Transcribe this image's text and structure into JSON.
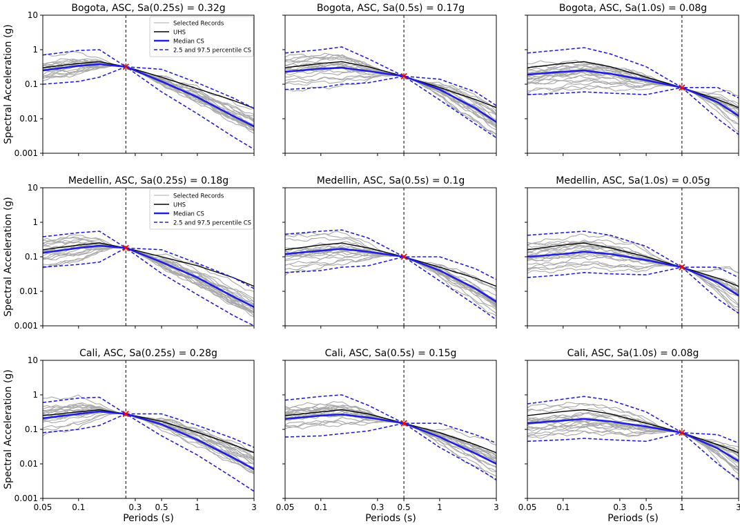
{
  "figure": {
    "ylabel": "Spectral Acceleration (g)",
    "xlabel": "Periods (s)",
    "x_ticks": [
      0.05,
      0.1,
      0.3,
      0.5,
      1,
      3
    ],
    "x_tick_labels": [
      "0.05",
      "0.1",
      "0.3",
      "0.5",
      "1",
      "3"
    ],
    "y_ticks": [
      0.001,
      0.01,
      0.1,
      1,
      10
    ],
    "y_tick_labels": [
      "0.001",
      "0.01",
      "0.1",
      "1",
      "10"
    ],
    "xlim": [
      0.05,
      3
    ],
    "ylim": [
      0.001,
      10
    ],
    "colors": {
      "records": "#a9a9a9",
      "uhs": "#000000",
      "median": "#1f1fdc",
      "percentile": "#1f1fdc",
      "target": "#ff0000",
      "conditioning_line": "#000000"
    },
    "legend": {
      "placement": "top-right",
      "entries": [
        "Selected Records",
        "UHS",
        "Median CS",
        "2.5 and 97.5 percentile CS"
      ]
    }
  },
  "chart_data": [
    {
      "type": "line",
      "title": "Bogota, ASC, Sa(0.25s) = 0.32g",
      "t_star": 0.25,
      "sa": 0.32,
      "series": [
        {
          "name": "UHS",
          "x": [
            0.05,
            0.1,
            0.15,
            0.25,
            0.5,
            1,
            2,
            3
          ],
          "y": [
            0.3,
            0.4,
            0.45,
            0.32,
            0.16,
            0.074,
            0.034,
            0.02
          ]
        },
        {
          "name": "Median CS",
          "x": [
            0.05,
            0.1,
            0.15,
            0.25,
            0.5,
            1,
            2,
            3
          ],
          "y": [
            0.25,
            0.34,
            0.38,
            0.32,
            0.12,
            0.042,
            0.012,
            0.006
          ]
        },
        {
          "name": "2.5 percentile CS",
          "x": [
            0.05,
            0.1,
            0.15,
            0.25,
            0.5,
            1,
            2,
            3
          ],
          "y": [
            0.1,
            0.12,
            0.16,
            0.32,
            0.06,
            0.014,
            0.003,
            0.0013
          ]
        },
        {
          "name": "97.5 percentile CS",
          "x": [
            0.05,
            0.1,
            0.15,
            0.25,
            0.5,
            1,
            2,
            3
          ],
          "y": [
            0.7,
            0.95,
            1,
            0.32,
            0.27,
            0.11,
            0.04,
            0.02
          ]
        }
      ]
    },
    {
      "type": "line",
      "title": "Bogota, ASC, Sa(0.5s) = 0.17g",
      "t_star": 0.5,
      "sa": 0.17,
      "series": [
        {
          "name": "UHS",
          "x": [
            0.05,
            0.1,
            0.15,
            0.25,
            0.5,
            1,
            2,
            3
          ],
          "y": [
            0.3,
            0.4,
            0.45,
            0.32,
            0.17,
            0.08,
            0.036,
            0.021
          ]
        },
        {
          "name": "Median CS",
          "x": [
            0.05,
            0.1,
            0.15,
            0.25,
            0.5,
            1,
            2,
            3
          ],
          "y": [
            0.23,
            0.28,
            0.3,
            0.24,
            0.17,
            0.07,
            0.02,
            0.008
          ]
        },
        {
          "name": "2.5 percentile CS",
          "x": [
            0.05,
            0.1,
            0.15,
            0.25,
            0.5,
            1,
            2,
            3
          ],
          "y": [
            0.07,
            0.08,
            0.1,
            0.11,
            0.17,
            0.035,
            0.007,
            0.0028
          ]
        },
        {
          "name": "97.5 percentile CS",
          "x": [
            0.05,
            0.1,
            0.15,
            0.25,
            0.5,
            1,
            2,
            3
          ],
          "y": [
            0.8,
            1,
            1.2,
            0.55,
            0.17,
            0.14,
            0.06,
            0.024
          ]
        }
      ]
    },
    {
      "type": "line",
      "title": "Bogota, ASC, Sa(1.0s) = 0.08g",
      "t_star": 1.0,
      "sa": 0.08,
      "series": [
        {
          "name": "UHS",
          "x": [
            0.05,
            0.1,
            0.15,
            0.25,
            0.5,
            1,
            2,
            3
          ],
          "y": [
            0.3,
            0.4,
            0.45,
            0.32,
            0.16,
            0.08,
            0.036,
            0.021
          ]
        },
        {
          "name": "Median CS",
          "x": [
            0.05,
            0.1,
            0.15,
            0.25,
            0.5,
            1,
            2,
            3
          ],
          "y": [
            0.19,
            0.23,
            0.25,
            0.2,
            0.13,
            0.08,
            0.03,
            0.012
          ]
        },
        {
          "name": "2.5 percentile CS",
          "x": [
            0.05,
            0.1,
            0.15,
            0.25,
            0.5,
            1,
            2,
            3
          ],
          "y": [
            0.05,
            0.055,
            0.06,
            0.055,
            0.05,
            0.08,
            0.01,
            0.0035
          ]
        },
        {
          "name": "97.5 percentile CS",
          "x": [
            0.05,
            0.1,
            0.15,
            0.25,
            0.5,
            1,
            2,
            3
          ],
          "y": [
            0.8,
            1,
            1.15,
            0.75,
            0.32,
            0.08,
            0.08,
            0.04
          ]
        }
      ]
    },
    {
      "type": "line",
      "title": "Medellin, ASC, Sa(0.25s) = 0.18g",
      "t_star": 0.25,
      "sa": 0.18,
      "series": [
        {
          "name": "UHS",
          "x": [
            0.05,
            0.1,
            0.15,
            0.25,
            0.5,
            1,
            2,
            3
          ],
          "y": [
            0.16,
            0.22,
            0.25,
            0.18,
            0.1,
            0.055,
            0.025,
            0.014
          ]
        },
        {
          "name": "Median CS",
          "x": [
            0.05,
            0.1,
            0.15,
            0.25,
            0.5,
            1,
            2,
            3
          ],
          "y": [
            0.13,
            0.18,
            0.21,
            0.18,
            0.07,
            0.025,
            0.007,
            0.0035
          ]
        },
        {
          "name": "2.5 percentile CS",
          "x": [
            0.05,
            0.1,
            0.15,
            0.25,
            0.5,
            1,
            2,
            3
          ],
          "y": [
            0.05,
            0.06,
            0.07,
            0.18,
            0.033,
            0.008,
            0.002,
            0.001
          ]
        },
        {
          "name": "97.5 percentile CS",
          "x": [
            0.05,
            0.1,
            0.15,
            0.25,
            0.5,
            1,
            2,
            3
          ],
          "y": [
            0.38,
            0.5,
            0.55,
            0.18,
            0.16,
            0.065,
            0.025,
            0.012
          ]
        }
      ]
    },
    {
      "type": "line",
      "title": "Medellin, ASC, Sa(0.5s) = 0.1g",
      "t_star": 0.5,
      "sa": 0.1,
      "series": [
        {
          "name": "UHS",
          "x": [
            0.05,
            0.1,
            0.15,
            0.25,
            0.5,
            1,
            2,
            3
          ],
          "y": [
            0.16,
            0.22,
            0.25,
            0.18,
            0.1,
            0.05,
            0.024,
            0.014
          ]
        },
        {
          "name": "Median CS",
          "x": [
            0.05,
            0.1,
            0.15,
            0.25,
            0.5,
            1,
            2,
            3
          ],
          "y": [
            0.12,
            0.15,
            0.17,
            0.14,
            0.1,
            0.04,
            0.012,
            0.005
          ]
        },
        {
          "name": "2.5 percentile CS",
          "x": [
            0.05,
            0.1,
            0.15,
            0.25,
            0.5,
            1,
            2,
            3
          ],
          "y": [
            0.035,
            0.04,
            0.05,
            0.055,
            0.1,
            0.02,
            0.004,
            0.0015
          ]
        },
        {
          "name": "97.5 percentile CS",
          "x": [
            0.05,
            0.1,
            0.15,
            0.25,
            0.5,
            1,
            2,
            3
          ],
          "y": [
            0.45,
            0.55,
            0.6,
            0.35,
            0.1,
            0.1,
            0.045,
            0.022
          ]
        }
      ]
    },
    {
      "type": "line",
      "title": "Medellin, ASC, Sa(1.0s) = 0.05g",
      "t_star": 1.0,
      "sa": 0.05,
      "series": [
        {
          "name": "UHS",
          "x": [
            0.05,
            0.1,
            0.15,
            0.25,
            0.5,
            1,
            2,
            3
          ],
          "y": [
            0.16,
            0.22,
            0.25,
            0.18,
            0.1,
            0.05,
            0.024,
            0.014
          ]
        },
        {
          "name": "Median CS",
          "x": [
            0.05,
            0.1,
            0.15,
            0.25,
            0.5,
            1,
            2,
            3
          ],
          "y": [
            0.1,
            0.12,
            0.14,
            0.12,
            0.08,
            0.05,
            0.018,
            0.0075
          ]
        },
        {
          "name": "2.5 percentile CS",
          "x": [
            0.05,
            0.1,
            0.15,
            0.25,
            0.5,
            1,
            2,
            3
          ],
          "y": [
            0.025,
            0.03,
            0.035,
            0.032,
            0.03,
            0.05,
            0.006,
            0.0023
          ]
        },
        {
          "name": "97.5 percentile CS",
          "x": [
            0.05,
            0.1,
            0.15,
            0.25,
            0.5,
            1,
            2,
            3
          ],
          "y": [
            0.42,
            0.5,
            0.55,
            0.42,
            0.2,
            0.05,
            0.05,
            0.025
          ]
        }
      ]
    },
    {
      "type": "line",
      "title": "Cali, ASC, Sa(0.25s) = 0.28g",
      "t_star": 0.25,
      "sa": 0.28,
      "series": [
        {
          "name": "UHS",
          "x": [
            0.05,
            0.1,
            0.15,
            0.25,
            0.5,
            1,
            2,
            3
          ],
          "y": [
            0.25,
            0.32,
            0.37,
            0.28,
            0.17,
            0.082,
            0.036,
            0.021
          ]
        },
        {
          "name": "Median CS",
          "x": [
            0.05,
            0.1,
            0.15,
            0.25,
            0.5,
            1,
            2,
            3
          ],
          "y": [
            0.21,
            0.28,
            0.33,
            0.28,
            0.14,
            0.05,
            0.015,
            0.007
          ]
        },
        {
          "name": "2.5 percentile CS",
          "x": [
            0.05,
            0.1,
            0.15,
            0.25,
            0.5,
            1,
            2,
            3
          ],
          "y": [
            0.08,
            0.1,
            0.13,
            0.28,
            0.065,
            0.018,
            0.004,
            0.0016
          ]
        },
        {
          "name": "97.5 percentile CS",
          "x": [
            0.05,
            0.1,
            0.15,
            0.25,
            0.5,
            1,
            2,
            3
          ],
          "y": [
            0.6,
            0.8,
            0.85,
            0.28,
            0.28,
            0.13,
            0.055,
            0.03
          ]
        }
      ]
    },
    {
      "type": "line",
      "title": "Cali, ASC, Sa(0.5s) = 0.15g",
      "t_star": 0.5,
      "sa": 0.15,
      "series": [
        {
          "name": "UHS",
          "x": [
            0.05,
            0.1,
            0.15,
            0.25,
            0.5,
            1,
            2,
            3
          ],
          "y": [
            0.25,
            0.32,
            0.37,
            0.28,
            0.15,
            0.08,
            0.036,
            0.021
          ]
        },
        {
          "name": "Median CS",
          "x": [
            0.05,
            0.1,
            0.15,
            0.25,
            0.5,
            1,
            2,
            3
          ],
          "y": [
            0.2,
            0.25,
            0.27,
            0.22,
            0.15,
            0.06,
            0.02,
            0.01
          ]
        },
        {
          "name": "2.5 percentile CS",
          "x": [
            0.05,
            0.1,
            0.15,
            0.25,
            0.5,
            1,
            2,
            3
          ],
          "y": [
            0.06,
            0.065,
            0.075,
            0.09,
            0.15,
            0.03,
            0.008,
            0.0035
          ]
        },
        {
          "name": "97.5 percentile CS",
          "x": [
            0.05,
            0.1,
            0.15,
            0.25,
            0.5,
            1,
            2,
            3
          ],
          "y": [
            0.7,
            0.9,
            1,
            0.5,
            0.15,
            0.15,
            0.07,
            0.04
          ]
        }
      ]
    },
    {
      "type": "line",
      "title": "Cali, ASC, Sa(1.0s) = 0.08g",
      "t_star": 1.0,
      "sa": 0.08,
      "series": [
        {
          "name": "UHS",
          "x": [
            0.05,
            0.1,
            0.15,
            0.25,
            0.5,
            1,
            2,
            3
          ],
          "y": [
            0.25,
            0.33,
            0.37,
            0.28,
            0.15,
            0.08,
            0.036,
            0.021
          ]
        },
        {
          "name": "Median CS",
          "x": [
            0.05,
            0.1,
            0.15,
            0.25,
            0.5,
            1,
            2,
            3
          ],
          "y": [
            0.15,
            0.18,
            0.2,
            0.17,
            0.12,
            0.08,
            0.028,
            0.012
          ]
        },
        {
          "name": "2.5 percentile CS",
          "x": [
            0.05,
            0.1,
            0.15,
            0.25,
            0.5,
            1,
            2,
            3
          ],
          "y": [
            0.045,
            0.05,
            0.055,
            0.05,
            0.045,
            0.08,
            0.01,
            0.0035
          ]
        },
        {
          "name": "97.5 percentile CS",
          "x": [
            0.05,
            0.1,
            0.15,
            0.25,
            0.5,
            1,
            2,
            3
          ],
          "y": [
            0.55,
            0.75,
            0.9,
            0.7,
            0.32,
            0.08,
            0.07,
            0.04
          ]
        }
      ]
    }
  ]
}
